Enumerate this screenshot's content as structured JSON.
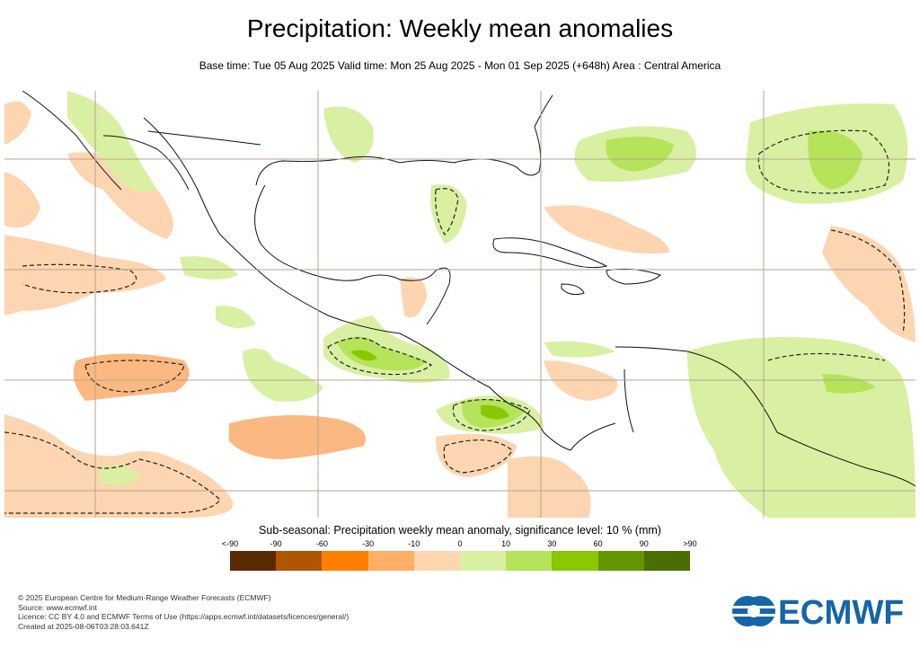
{
  "title": "Precipitation: Weekly mean anomalies",
  "subtitle": "Base time: Tue 05 Aug 2025 Valid time: Mon 25 Aug 2025 - Mon 01 Sep 2025 (+648h) Area : Central America",
  "legend": {
    "title": "Sub-seasonal: Precipitation weekly mean anomaly, significance level: 10 % (mm)",
    "ticks": [
      "<-90",
      "-90",
      "-60",
      "-30",
      "-10",
      "0",
      "10",
      "30",
      "60",
      "90",
      ">90"
    ],
    "colors": [
      "#5a2a00",
      "#b05500",
      "#ff8000",
      "#ffb066",
      "#ffd6b0",
      "#d9f0a3",
      "#b5e35a",
      "#88c800",
      "#649600",
      "#4a6e00"
    ]
  },
  "footer": {
    "line1": "© 2025 European Centre for Medium-Range Weather Forecasts (ECMWF)",
    "line2": "Source: www.ecmwf.int",
    "line3": "Licence: CC BY 4.0 and ECMWF Terms of Use (https://apps.ecmwf.int/datasets/licences/general/)",
    "line4": "Created at 2025-08-06T03:28:03.641Z"
  },
  "logo": {
    "text": "ECMWF",
    "color": "#1565a8"
  },
  "map": {
    "region": "Central America",
    "land_border_color": "#000000",
    "grid_color": "#b5a58f"
  }
}
